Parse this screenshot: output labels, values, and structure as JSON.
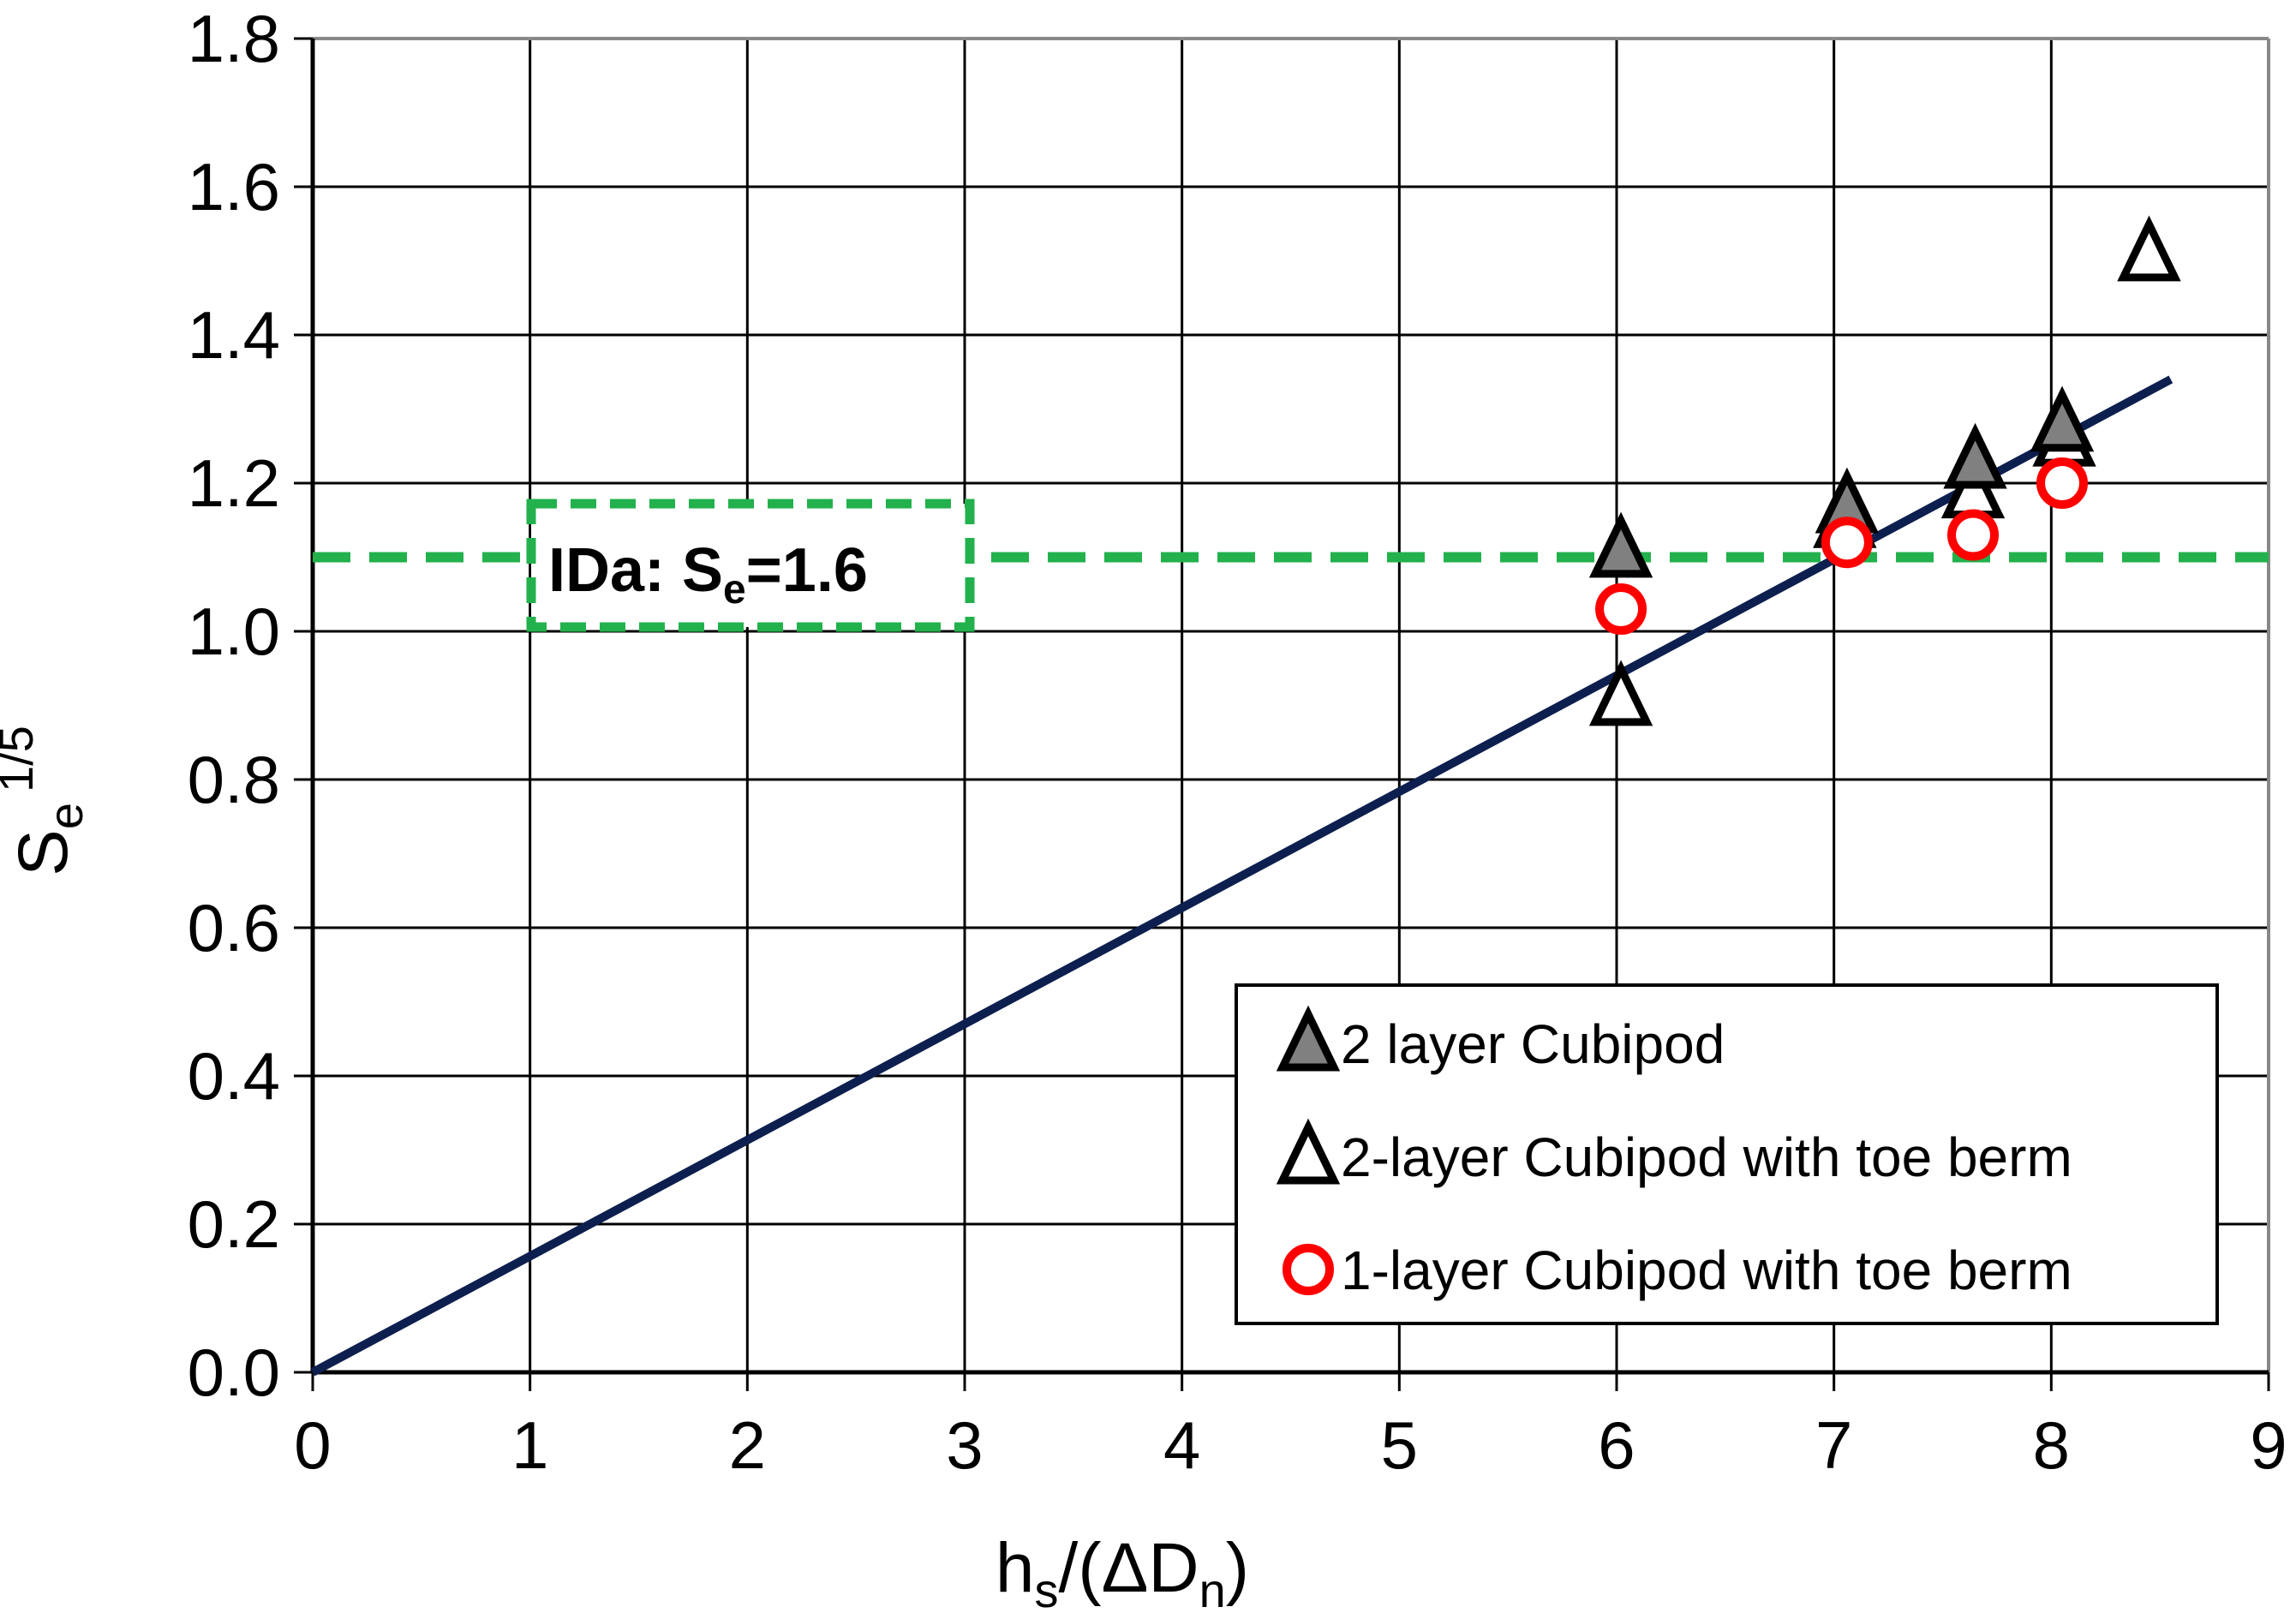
{
  "chart_data": {
    "type": "scatter",
    "title": "",
    "xlabel": {
      "main": "h",
      "sub": "s",
      "rest": "/(ΔD",
      "sub2": "n",
      "close": ")"
    },
    "ylabel": {
      "main": "S",
      "sub": "e",
      "sup": "1/5"
    },
    "xlim": [
      0,
      9
    ],
    "ylim": [
      0,
      1.8
    ],
    "xticks": [
      "0",
      "1",
      "2",
      "3",
      "4",
      "5",
      "6",
      "7",
      "8",
      "9"
    ],
    "yticks": [
      "0.0",
      "0.2",
      "0.4",
      "0.6",
      "0.8",
      "1.0",
      "1.2",
      "1.4",
      "1.6",
      "1.8"
    ],
    "grid": true,
    "series": [
      {
        "name": "2 layer Cubipod",
        "marker": "triangle-filled",
        "color": "#808080",
        "points": [
          [
            6.02,
            1.11
          ],
          [
            7.06,
            1.17
          ],
          [
            7.65,
            1.23
          ],
          [
            8.05,
            1.28
          ]
        ]
      },
      {
        "name": "2-layer Cubipod with toe berm",
        "marker": "triangle-open",
        "color": "#000000",
        "points": [
          [
            6.02,
            0.91
          ],
          [
            7.05,
            1.15
          ],
          [
            7.64,
            1.19
          ],
          [
            8.06,
            1.26
          ],
          [
            8.45,
            1.51
          ]
        ]
      },
      {
        "name": "1-layer Cubipod with toe berm",
        "marker": "circle-open",
        "color": "#ff0000",
        "points": [
          [
            6.02,
            1.03
          ],
          [
            7.06,
            1.12
          ],
          [
            7.64,
            1.13
          ],
          [
            8.05,
            1.2
          ]
        ]
      }
    ],
    "fit_line": {
      "color": "#0d1f4f",
      "x": [
        0,
        8.55
      ],
      "y": [
        0,
        1.34
      ]
    },
    "threshold_line": {
      "y": 1.1,
      "color": "#22b14c",
      "style": "dashed"
    },
    "annotation": {
      "main": "IDa: S",
      "sub": "e",
      "rest": "=1.6",
      "border_color": "#22b14c"
    },
    "legend_position": "bottom-right"
  }
}
